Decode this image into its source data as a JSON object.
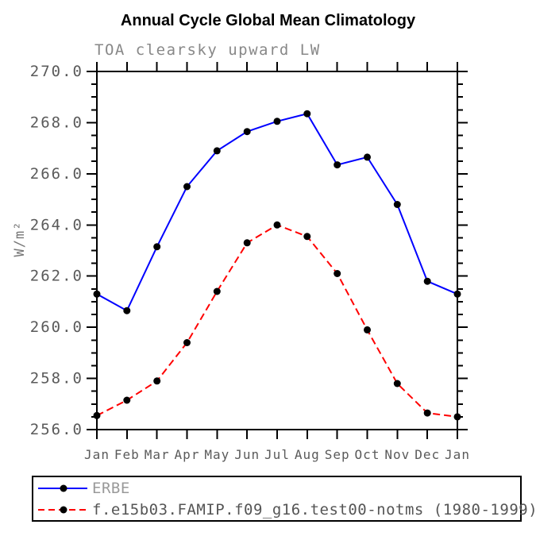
{
  "chart_data": {
    "type": "line",
    "title": "Annual Cycle Global Mean Climatology",
    "subtitle": "TOA clearsky upward LW",
    "ylabel": "W/m²",
    "xlabel": "",
    "x_tick_labels": [
      "Jan",
      "Feb",
      "Mar",
      "Apr",
      "May",
      "Jun",
      "Jul",
      "Aug",
      "Sep",
      "Oct",
      "Nov",
      "Dec",
      "Jan"
    ],
    "ylim": [
      256.0,
      270.0
    ],
    "y_major_tick_step": 2.0,
    "y_minor_tick_step": 0.5,
    "y_tick_label_format": "one-decimal",
    "grid": "off",
    "frame": "boxed-axes-outward-ticks",
    "marker": "filled-circle",
    "legend_position": "bottom-left-box",
    "series": [
      {
        "name": "ERBE",
        "color": "#0000ff",
        "style": "solid",
        "marker_color": "#000000",
        "values": [
          261.3,
          260.65,
          263.15,
          265.5,
          266.9,
          267.65,
          268.05,
          268.35,
          266.35,
          266.65,
          264.8,
          261.8,
          261.3
        ]
      },
      {
        "name": "f.e15b03.FAMIP.f09_g16.test00-notms (1980-1999)",
        "color": "#ff0000",
        "style": "dashed",
        "marker_color": "#000000",
        "values": [
          256.55,
          257.15,
          257.9,
          259.4,
          261.4,
          263.3,
          264.0,
          263.55,
          262.1,
          259.9,
          257.8,
          256.65,
          256.5
        ]
      }
    ],
    "colors": {
      "axis": "#000000",
      "tick_label": "#5a5a5a",
      "subtitle_text": "#888888",
      "y_axis_label_text": "#777777",
      "legend_label_erbe": "#999999",
      "legend_label_model": "#555555",
      "background": "#ffffff"
    }
  }
}
